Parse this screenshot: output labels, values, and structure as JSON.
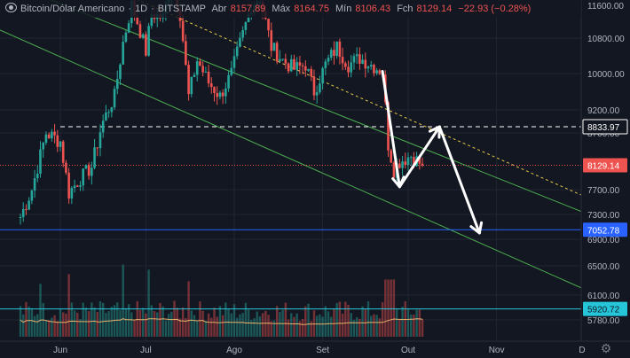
{
  "header": {
    "symbol": "Bitcoin/Dólar Americano",
    "interval": "1D",
    "exchange": "BITSTAMP",
    "open_label": "Abr",
    "open_value": "8157.89",
    "high_label": "Máx",
    "high_value": "8164.75",
    "low_label": "Mín",
    "low_value": "8106.43",
    "close_label": "Fch",
    "close_value": "8129.14",
    "change": "−22.93 (−0.28%)"
  },
  "colors": {
    "background": "#131722",
    "up": "#26a69a",
    "down": "#ef5350",
    "channel": "#4caf50",
    "trendline": "#e6c84a",
    "price_line": "#ef5350",
    "support_line": "#2962ff",
    "volume_ma": "#e8b06a",
    "cyan_line": "#26c6da"
  },
  "chart_data": {
    "type": "candlestick",
    "title": "Bitcoin/Dólar Americano",
    "interval": "1D",
    "exchange": "BITSTAMP",
    "x_ticks": [
      "Jun",
      "Jul",
      "Ago",
      "Set",
      "Out",
      "Nov",
      "D"
    ],
    "y_ticks": [
      11600,
      10800,
      10000,
      9200,
      8700,
      7700,
      7300,
      6900,
      6500,
      6100,
      5780
    ],
    "ylim": [
      5700,
      11600
    ],
    "last_price": 8129.14,
    "price_labels": [
      {
        "value": 8833.97,
        "label": "8833.97",
        "kind": "resistance"
      },
      {
        "value": 8129.14,
        "label": "8129.14",
        "kind": "last"
      },
      {
        "value": 7052.78,
        "label": "7052.78",
        "kind": "support"
      },
      {
        "value": 5920.72,
        "label": "5920.72",
        "kind": "support2"
      }
    ],
    "close_path": [
      [
        "2019-05-18",
        7260
      ],
      [
        "2019-05-22",
        7700
      ],
      [
        "2019-05-27",
        8700
      ],
      [
        "2019-06-01",
        8550
      ],
      [
        "2019-06-04",
        7650
      ],
      [
        "2019-06-08",
        7900
      ],
      [
        "2019-06-12",
        8100
      ],
      [
        "2019-06-16",
        8950
      ],
      [
        "2019-06-20",
        9500
      ],
      [
        "2019-06-23",
        10700
      ],
      [
        "2019-06-26",
        11600
      ],
      [
        "2019-06-28",
        11200
      ],
      [
        "2019-07-01",
        10500
      ],
      [
        "2019-07-03",
        11400
      ],
      [
        "2019-07-07",
        11300
      ],
      [
        "2019-07-10",
        12200
      ],
      [
        "2019-07-13",
        11400
      ],
      [
        "2019-07-16",
        9500
      ],
      [
        "2019-07-19",
        10300
      ],
      [
        "2019-07-23",
        9800
      ],
      [
        "2019-07-27",
        9500
      ],
      [
        "2019-07-31",
        10000
      ],
      [
        "2019-08-04",
        10900
      ],
      [
        "2019-08-07",
        11600
      ],
      [
        "2019-08-10",
        11800
      ],
      [
        "2019-08-14",
        10600
      ],
      [
        "2019-08-18",
        10300
      ],
      [
        "2019-08-22",
        10100
      ],
      [
        "2019-08-26",
        10200
      ],
      [
        "2019-08-29",
        9600
      ],
      [
        "2019-09-02",
        10200
      ],
      [
        "2019-09-06",
        10600
      ],
      [
        "2019-09-10",
        10200
      ],
      [
        "2019-09-14",
        10350
      ],
      [
        "2019-09-18",
        10200
      ],
      [
        "2019-09-22",
        10050
      ],
      [
        "2019-09-24",
        8500
      ],
      [
        "2019-09-26",
        8050
      ],
      [
        "2019-09-28",
        8200
      ],
      [
        "2019-10-02",
        8300
      ],
      [
        "2019-10-06",
        8129
      ]
    ],
    "projection": [
      [
        "2019-09-22",
        10050
      ],
      [
        "2019-09-28",
        7750
      ],
      [
        "2019-10-12",
        8833.97
      ],
      [
        "2019-10-26",
        7000
      ]
    ],
    "resistance_from": "2019-06-01",
    "resistance_to": "2019-10-12",
    "channel_upper": [
      [
        "2019-05-01",
        12500
      ],
      [
        "2019-12-31",
        6800
      ]
    ],
    "channel_lower": [
      [
        "2019-05-01",
        11300
      ],
      [
        "2019-12-31",
        5700
      ]
    ],
    "trendline": [
      [
        "2019-06-26",
        11800
      ],
      [
        "2019-12-31",
        7000
      ]
    ],
    "volume_max": 14000
  }
}
